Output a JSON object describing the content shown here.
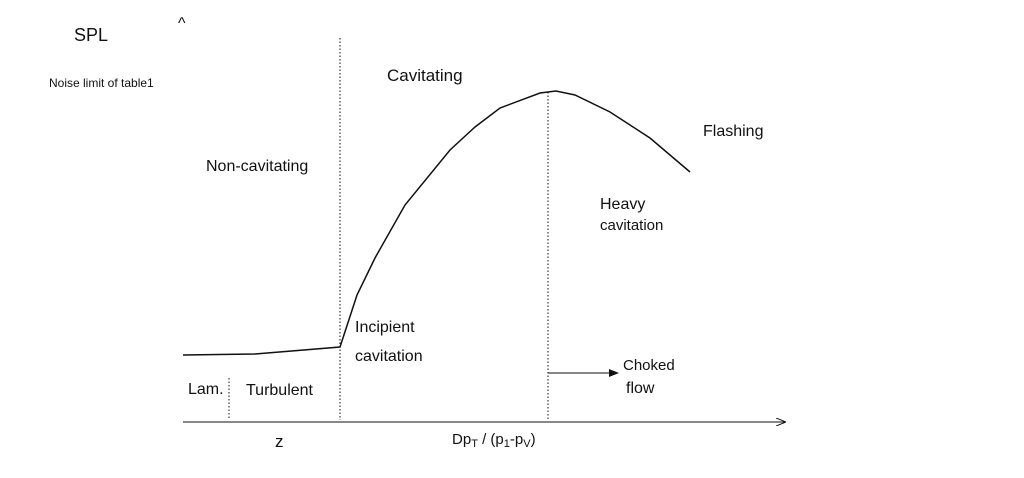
{
  "diagram": {
    "axis": {
      "y_label": "SPL",
      "y_arrow": "^",
      "x_left_label": "z",
      "x_label": {
        "main": "Dp",
        "sub1": "T",
        "mid": " / (p",
        "sub2": "1",
        "dash": "-p",
        "sub3": "V",
        "end": ")"
      }
    },
    "noise_limit": "Noise limit  of table1",
    "regions": {
      "cavitating": "Cavitating",
      "non_cavitating": "Non-cavitating",
      "flashing": "Flashing",
      "heavy": [
        "Heavy",
        "cavitation"
      ],
      "incipient": [
        "Incipient",
        "cavitation"
      ],
      "choked": [
        "Choked",
        "flow"
      ],
      "laminar": "Lam.",
      "turbulent": "Turbulent"
    }
  }
}
